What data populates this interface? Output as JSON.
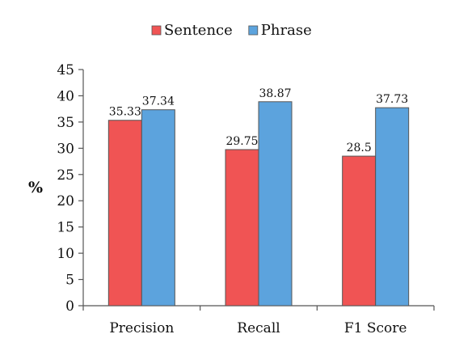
{
  "chart_data": {
    "type": "bar",
    "categories": [
      "Precision",
      "Recall",
      "F1 Score"
    ],
    "series": [
      {
        "name": "Sentence",
        "values": [
          35.33,
          29.75,
          28.5
        ],
        "labels": [
          "35.33",
          "29.75",
          "28.5"
        ],
        "color": "#f05454"
      },
      {
        "name": "Phrase",
        "values": [
          37.34,
          38.87,
          37.73
        ],
        "labels": [
          "37.34",
          "38.87",
          "37.73"
        ],
        "color": "#5ca3dd"
      }
    ],
    "ylabel": "%",
    "ylim": [
      0,
      45
    ],
    "yticks": [
      0,
      5,
      10,
      15,
      20,
      25,
      30,
      35,
      40,
      45
    ],
    "legend_position": "top-center",
    "grid": false
  }
}
